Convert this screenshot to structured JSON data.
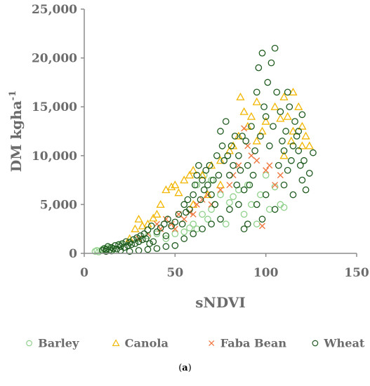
{
  "caption": {
    "open": "(",
    "letter": "a",
    "close": ")"
  },
  "chart_data": {
    "type": "scatter",
    "title": "",
    "xlabel": "sNDVI",
    "ylabel_main": "DM kgha",
    "ylabel_sup": "-1",
    "xlim": [
      0,
      150
    ],
    "ylim": [
      0,
      25000
    ],
    "x_ticks": [
      0,
      50,
      100,
      150
    ],
    "y_ticks": [
      0,
      5000,
      10000,
      15000,
      20000,
      25000
    ],
    "x_tick_labels": [
      "0",
      "50",
      "100",
      "150"
    ],
    "y_tick_labels": [
      "0",
      "5,000",
      "10,000",
      "15,000",
      "20,000",
      "25,000"
    ],
    "grid": false,
    "legend_position": "bottom",
    "series": [
      {
        "name": "Barley",
        "marker": "circle",
        "color": "#8fd18a",
        "points": [
          [
            6,
            200
          ],
          [
            7,
            300
          ],
          [
            8,
            150
          ],
          [
            10,
            400
          ],
          [
            12,
            500
          ],
          [
            14,
            600
          ],
          [
            16,
            400
          ],
          [
            20,
            900
          ],
          [
            25,
            1200
          ],
          [
            30,
            1500
          ],
          [
            35,
            1800
          ],
          [
            40,
            2000
          ],
          [
            45,
            1500
          ],
          [
            50,
            2000
          ],
          [
            55,
            2200
          ],
          [
            58,
            2600
          ],
          [
            60,
            3000
          ],
          [
            62,
            2500
          ],
          [
            65,
            4000
          ],
          [
            68,
            3500
          ],
          [
            70,
            4500
          ],
          [
            72,
            5000
          ],
          [
            75,
            6000
          ],
          [
            78,
            3000
          ],
          [
            80,
            5200
          ],
          [
            82,
            5800
          ],
          [
            85,
            6500
          ],
          [
            88,
            4000
          ],
          [
            90,
            7000
          ],
          [
            92,
            5000
          ],
          [
            95,
            3000
          ],
          [
            97,
            6000
          ],
          [
            100,
            8000
          ],
          [
            102,
            4500
          ],
          [
            105,
            6800
          ],
          [
            108,
            5000
          ],
          [
            110,
            4700
          ],
          [
            62,
            7000
          ],
          [
            66,
            8000
          ],
          [
            70,
            7500
          ]
        ]
      },
      {
        "name": "Canola",
        "marker": "triangle",
        "color": "#f2b600",
        "points": [
          [
            25,
            1500
          ],
          [
            28,
            2500
          ],
          [
            30,
            3500
          ],
          [
            32,
            2800
          ],
          [
            35,
            3000
          ],
          [
            38,
            3600
          ],
          [
            40,
            4000
          ],
          [
            42,
            5000
          ],
          [
            45,
            6500
          ],
          [
            48,
            6800
          ],
          [
            50,
            7000
          ],
          [
            52,
            6200
          ],
          [
            55,
            7500
          ],
          [
            58,
            8000
          ],
          [
            60,
            8500
          ],
          [
            65,
            8000
          ],
          [
            70,
            9000
          ],
          [
            75,
            9500
          ],
          [
            80,
            10500
          ],
          [
            82,
            11000
          ],
          [
            85,
            12000
          ],
          [
            88,
            14500
          ],
          [
            90,
            13000
          ],
          [
            92,
            14000
          ],
          [
            95,
            11500
          ],
          [
            98,
            12500
          ],
          [
            100,
            13500
          ],
          [
            105,
            15000
          ],
          [
            110,
            16000
          ],
          [
            112,
            14000
          ],
          [
            115,
            16500
          ],
          [
            118,
            15000
          ],
          [
            120,
            13000
          ],
          [
            122,
            12000
          ],
          [
            124,
            11000
          ],
          [
            110,
            10000
          ],
          [
            115,
            12500
          ],
          [
            120,
            11000
          ],
          [
            86,
            16000
          ],
          [
            95,
            15500
          ],
          [
            108,
            13800
          ],
          [
            114,
            11500
          ],
          [
            75,
            7000
          ],
          [
            68,
            6000
          ],
          [
            60,
            5000
          ]
        ]
      },
      {
        "name": "Faba Bean",
        "marker": "cross",
        "color": "#f07840",
        "points": [
          [
            30,
            1500
          ],
          [
            35,
            2000
          ],
          [
            40,
            3000
          ],
          [
            42,
            2500
          ],
          [
            45,
            3500
          ],
          [
            48,
            3000
          ],
          [
            50,
            2500
          ],
          [
            52,
            4000
          ],
          [
            55,
            3500
          ],
          [
            58,
            4200
          ],
          [
            60,
            4000
          ],
          [
            62,
            5000
          ],
          [
            65,
            5500
          ],
          [
            68,
            6000
          ],
          [
            70,
            5000
          ],
          [
            75,
            6500
          ],
          [
            80,
            7000
          ],
          [
            82,
            8000
          ],
          [
            85,
            9000
          ],
          [
            88,
            12800
          ],
          [
            90,
            11000
          ],
          [
            92,
            10000
          ],
          [
            95,
            9500
          ],
          [
            98,
            2800
          ],
          [
            100,
            8500
          ],
          [
            102,
            9000
          ],
          [
            105,
            7000
          ],
          [
            108,
            8000
          ]
        ]
      },
      {
        "name": "Wheat",
        "marker": "circle",
        "color": "#1f5b1f",
        "points": [
          [
            10,
            300
          ],
          [
            11,
            500
          ],
          [
            12,
            400
          ],
          [
            13,
            700
          ],
          [
            14,
            350
          ],
          [
            15,
            600
          ],
          [
            16,
            500
          ],
          [
            17,
            800
          ],
          [
            18,
            450
          ],
          [
            19,
            900
          ],
          [
            20,
            700
          ],
          [
            21,
            1000
          ],
          [
            22,
            600
          ],
          [
            23,
            1200
          ],
          [
            24,
            800
          ],
          [
            25,
            1100
          ],
          [
            26,
            900
          ],
          [
            27,
            1400
          ],
          [
            28,
            1000
          ],
          [
            29,
            1600
          ],
          [
            30,
            1200
          ],
          [
            31,
            1800
          ],
          [
            32,
            1400
          ],
          [
            33,
            2000
          ],
          [
            34,
            1500
          ],
          [
            35,
            2400
          ],
          [
            36,
            1000
          ],
          [
            37,
            2800
          ],
          [
            38,
            1200
          ],
          [
            40,
            2200
          ],
          [
            42,
            2600
          ],
          [
            44,
            3000
          ],
          [
            45,
            1800
          ],
          [
            46,
            3500
          ],
          [
            48,
            2800
          ],
          [
            50,
            3200
          ],
          [
            52,
            4000
          ],
          [
            54,
            3000
          ],
          [
            55,
            5000
          ],
          [
            56,
            4200
          ],
          [
            57,
            5500
          ],
          [
            58,
            4500
          ],
          [
            60,
            6000
          ],
          [
            61,
            7000
          ],
          [
            62,
            8000
          ],
          [
            63,
            9000
          ],
          [
            64,
            5500
          ],
          [
            65,
            7500
          ],
          [
            66,
            6500
          ],
          [
            67,
            8500
          ],
          [
            68,
            7000
          ],
          [
            69,
            9000
          ],
          [
            70,
            6000
          ],
          [
            71,
            7500
          ],
          [
            72,
            5000
          ],
          [
            73,
            10000
          ],
          [
            74,
            8000
          ],
          [
            75,
            12500
          ],
          [
            76,
            11000
          ],
          [
            77,
            9500
          ],
          [
            78,
            13500
          ],
          [
            79,
            10000
          ],
          [
            80,
            8000
          ],
          [
            81,
            11000
          ],
          [
            82,
            9000
          ],
          [
            83,
            12000
          ],
          [
            84,
            7000
          ],
          [
            85,
            10000
          ],
          [
            86,
            8500
          ],
          [
            87,
            12000
          ],
          [
            88,
            6500
          ],
          [
            89,
            11500
          ],
          [
            90,
            9000
          ],
          [
            91,
            7000
          ],
          [
            92,
            13000
          ],
          [
            93,
            8000
          ],
          [
            94,
            10500
          ],
          [
            95,
            16500
          ],
          [
            96,
            19000
          ],
          [
            97,
            12000
          ],
          [
            98,
            20500
          ],
          [
            99,
            15000
          ],
          [
            100,
            14000
          ],
          [
            101,
            17500
          ],
          [
            102,
            11000
          ],
          [
            103,
            19500
          ],
          [
            104,
            13000
          ],
          [
            105,
            21000
          ],
          [
            106,
            16500
          ],
          [
            107,
            9000
          ],
          [
            108,
            14500
          ],
          [
            109,
            11500
          ],
          [
            110,
            10500
          ],
          [
            111,
            12500
          ],
          [
            112,
            8500
          ],
          [
            113,
            15000
          ],
          [
            114,
            9500
          ],
          [
            115,
            11000
          ],
          [
            116,
            13500
          ],
          [
            117,
            12000
          ],
          [
            118,
            10500
          ],
          [
            119,
            9000
          ],
          [
            120,
            7500
          ],
          [
            121,
            9500
          ],
          [
            122,
            6500
          ],
          [
            124,
            8200
          ],
          [
            126,
            10300
          ],
          [
            100,
            6000
          ],
          [
            95,
            5000
          ],
          [
            98,
            3500
          ],
          [
            90,
            3000
          ],
          [
            88,
            2500
          ],
          [
            105,
            4500
          ],
          [
            110,
            7000
          ],
          [
            115,
            6000
          ],
          [
            118,
            12500
          ],
          [
            120,
            14200
          ],
          [
            112,
            16500
          ],
          [
            85,
            5000
          ],
          [
            80,
            4500
          ],
          [
            75,
            3500
          ],
          [
            70,
            3000
          ],
          [
            65,
            2500
          ],
          [
            60,
            2000
          ],
          [
            55,
            1500
          ],
          [
            50,
            800
          ],
          [
            45,
            700
          ],
          [
            40,
            500
          ],
          [
            35,
            400
          ],
          [
            30,
            300
          ],
          [
            25,
            200
          ],
          [
            20,
            300
          ],
          [
            15,
            250
          ],
          [
            12,
            200
          ]
        ]
      }
    ]
  }
}
